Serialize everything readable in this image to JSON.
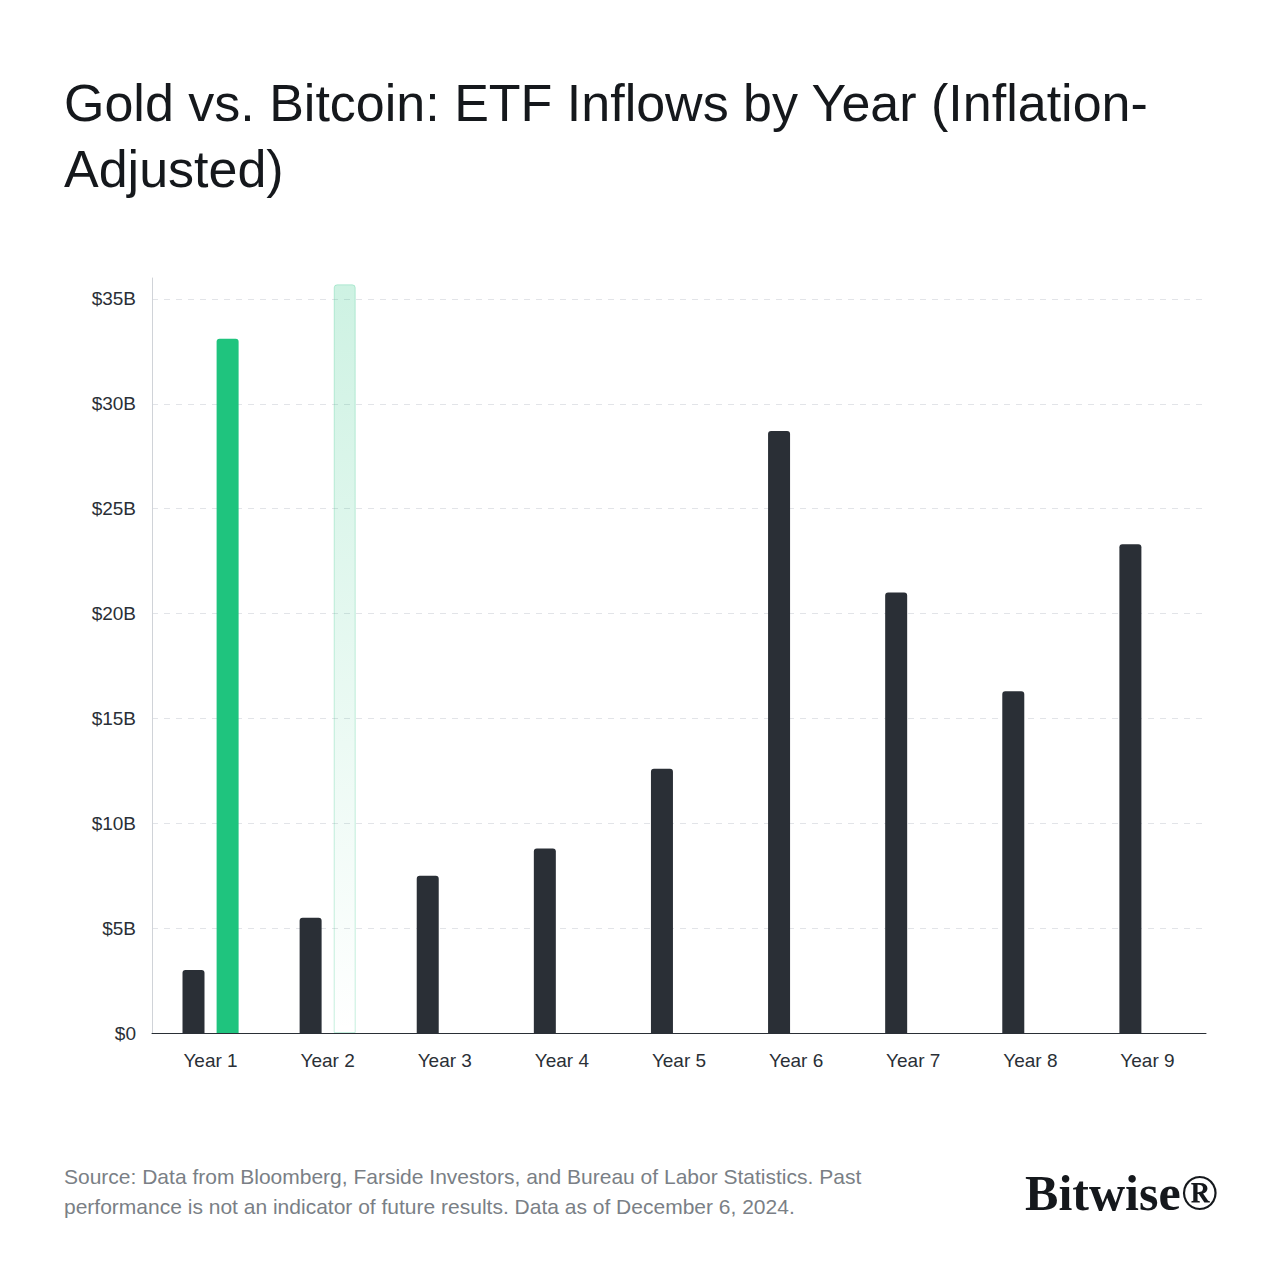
{
  "chart_data": {
    "type": "bar",
    "title": "Gold vs. Bitcoin: ETF Inflows by Year (Inflation-Adjusted)",
    "categories": [
      "Year 1",
      "Year 2",
      "Year 3",
      "Year 4",
      "Year 5",
      "Year 6",
      "Year 7",
      "Year 8",
      "Year 9"
    ],
    "series": [
      {
        "name": "Gold",
        "color": "#2a2f36",
        "values": [
          3.0,
          5.5,
          7.5,
          8.8,
          12.6,
          28.7,
          21.0,
          16.3,
          23.3
        ]
      },
      {
        "name": "Bitcoin",
        "color": "#1fc47e",
        "values": [
          33.1,
          35.7,
          null,
          null,
          null,
          null,
          null,
          null,
          null
        ]
      }
    ],
    "ylim": [
      0,
      36
    ],
    "yticks": [
      {
        "value": 0,
        "label": "$0"
      },
      {
        "value": 5,
        "label": "$5B"
      },
      {
        "value": 10,
        "label": "$10B"
      },
      {
        "value": 15,
        "label": "$15B"
      },
      {
        "value": 20,
        "label": "$20B"
      },
      {
        "value": 25,
        "label": "$25B"
      },
      {
        "value": 30,
        "label": "$30B"
      },
      {
        "value": 35,
        "label": "$35B"
      }
    ],
    "grid": true,
    "source": "Source: Data from Bloomberg, Farside Investors, and Bureau of Labor Statistics. Past performance is not an indicator of future results. Data as of December 6, 2024.",
    "logo": "Bitwise®"
  }
}
